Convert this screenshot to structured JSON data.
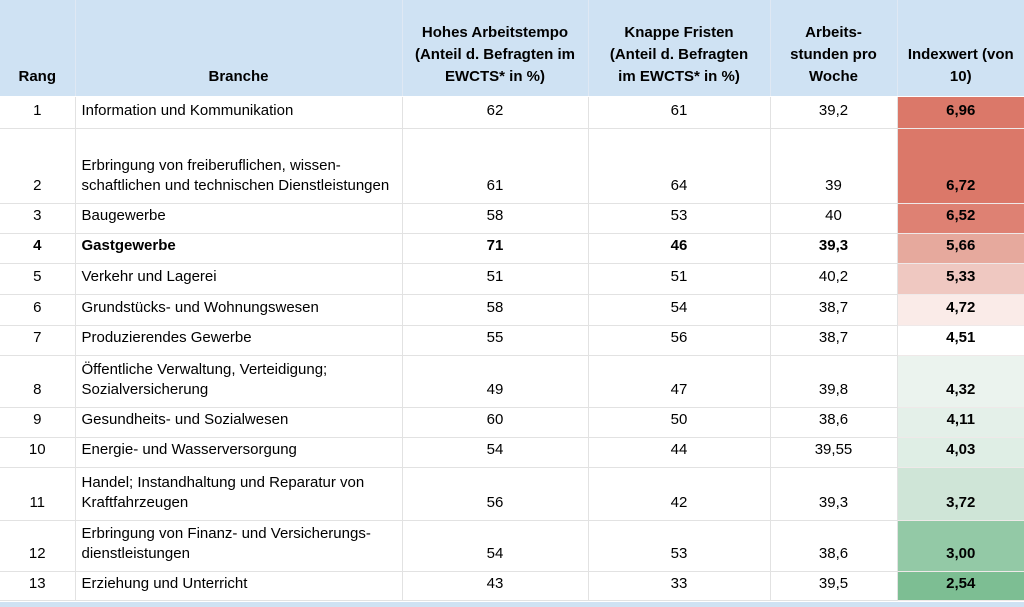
{
  "colors": {
    "header_bg": "#cfe2f3",
    "grid_line": "#e2e2e2",
    "partial_next_row_bg": "#cfe2f3",
    "index_scale_max_red": "#db7869",
    "index_scale_mid_white": "#ffffff",
    "index_scale_min_green": "#7dbe93"
  },
  "chart_data": {
    "type": "table",
    "title": "",
    "columns": [
      "Rang",
      "Branche",
      "Hohes Arbeitstempo\n(Anteil d. Befragten im\nEWCTS* in %)",
      "Knappe Fristen\n(Anteil d. Befragten\nim EWCTS* in %)",
      "Arbeits-\nstunden pro\nWoche",
      "Indexwert (von\n10)"
    ],
    "rows": [
      {
        "rang": "1",
        "branche": "Information und Kommunikation",
        "tempo": "62",
        "fristen": "61",
        "stunden": "39,2",
        "index": "6,96",
        "index_color": "#db7869",
        "bold": false
      },
      {
        "rang": "2",
        "branche": "Erbringung von freiberuflichen, wissen-\nschaftlichen und technischen Dienstleistungen",
        "tempo": "61",
        "fristen": "64",
        "stunden": "39",
        "index": "6,72",
        "index_color": "#db7869",
        "bold": false
      },
      {
        "rang": "3",
        "branche": "Baugewerbe",
        "tempo": "58",
        "fristen": "53",
        "stunden": "40",
        "index": "6,52",
        "index_color": "#de8173",
        "bold": false
      },
      {
        "rang": "4",
        "branche": "Gastgewerbe",
        "tempo": "71",
        "fristen": "46",
        "stunden": "39,3",
        "index": "5,66",
        "index_color": "#e6a99d",
        "bold": true
      },
      {
        "rang": "5",
        "branche": "Verkehr und Lagerei",
        "tempo": "51",
        "fristen": "51",
        "stunden": "40,2",
        "index": "5,33",
        "index_color": "#efc8c1",
        "bold": false
      },
      {
        "rang": "6",
        "branche": "Grundstücks- und Wohnungswesen",
        "tempo": "58",
        "fristen": "54",
        "stunden": "38,7",
        "index": "4,72",
        "index_color": "#faebe8",
        "bold": false
      },
      {
        "rang": "7",
        "branche": "Produzierendes Gewerbe",
        "tempo": "55",
        "fristen": "56",
        "stunden": "38,7",
        "index": "4,51",
        "index_color": "#ffffff",
        "bold": false
      },
      {
        "rang": "8",
        "branche": "Öffentliche Verwaltung, Verteidigung;\nSozialversicherung",
        "tempo": "49",
        "fristen": "47",
        "stunden": "39,8",
        "index": "4,32",
        "index_color": "#ebf3ee",
        "bold": false
      },
      {
        "rang": "9",
        "branche": "Gesundheits- und Sozialwesen",
        "tempo": "60",
        "fristen": "50",
        "stunden": "38,6",
        "index": "4,11",
        "index_color": "#e4f0e9",
        "bold": false
      },
      {
        "rang": "10",
        "branche": "Energie- und Wasserversorgung",
        "tempo": "54",
        "fristen": "44",
        "stunden": "39,55",
        "index": "4,03",
        "index_color": "#dfeee5",
        "bold": false
      },
      {
        "rang": "11",
        "branche": "Handel; Instandhaltung und Reparatur von\nKraftfahrzeugen",
        "tempo": "56",
        "fristen": "42",
        "stunden": "39,3",
        "index": "3,72",
        "index_color": "#cfe5d7",
        "bold": false
      },
      {
        "rang": "12",
        "branche": "Erbringung von Finanz- und Versicherungs-\ndienstleistungen",
        "tempo": "54",
        "fristen": "53",
        "stunden": "38,6",
        "index": "3,00",
        "index_color": "#93c9a6",
        "bold": false
      },
      {
        "rang": "13",
        "branche": "Erziehung und Unterricht",
        "tempo": "43",
        "fristen": "33",
        "stunden": "39,5",
        "index": "2,54",
        "index_color": "#7dbe93",
        "bold": false
      }
    ]
  }
}
